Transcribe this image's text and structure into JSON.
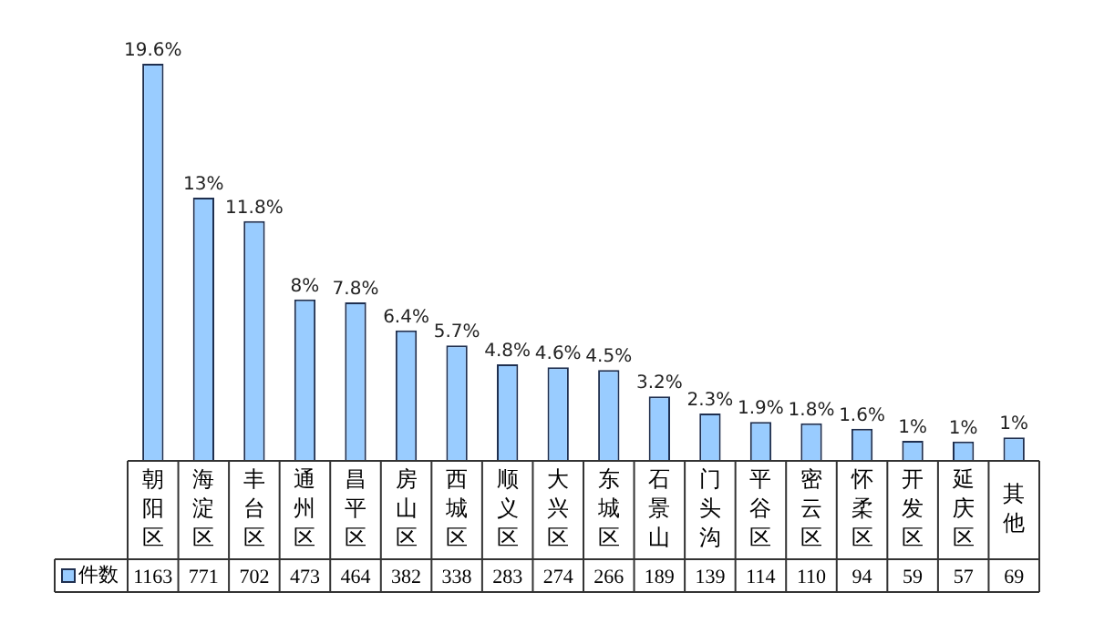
{
  "chart_data": {
    "type": "bar",
    "categories": [
      "朝阳区",
      "海淀区",
      "丰台区",
      "通州区",
      "昌平区",
      "房山区",
      "西城区",
      "顺义区",
      "大兴区",
      "东城区",
      "石景山",
      "门头沟",
      "平谷区",
      "密云区",
      "怀柔区",
      "开发区",
      "延庆区",
      "其他"
    ],
    "series": [
      {
        "name": "件数",
        "color": "#99ccff",
        "values": [
          1163,
          771,
          702,
          473,
          464,
          382,
          338,
          283,
          274,
          266,
          189,
          139,
          114,
          110,
          94,
          59,
          57,
          69
        ]
      }
    ],
    "annotations": [
      {
        "text": "19.6%",
        "x": "朝阳区",
        "y": 1163
      },
      {
        "text": "13%",
        "x": "海淀区",
        "y": 771
      },
      {
        "text": "11.8%",
        "x": "丰台区",
        "y": 702
      },
      {
        "text": "8%",
        "x": "通州区",
        "y": 473
      },
      {
        "text": "7.8%",
        "x": "昌平区",
        "y": 464
      },
      {
        "text": "6.4%",
        "x": "房山区",
        "y": 382
      },
      {
        "text": "5.7%",
        "x": "西城区",
        "y": 338
      },
      {
        "text": "4.8%",
        "x": "顺义区",
        "y": 283
      },
      {
        "text": "4.6%",
        "x": "大兴区",
        "y": 274
      },
      {
        "text": "4.5%",
        "x": "东城区",
        "y": 266
      },
      {
        "text": "3.2%",
        "x": "石景山",
        "y": 189
      },
      {
        "text": "2.3%",
        "x": "门头沟",
        "y": 139
      },
      {
        "text": "1.9%",
        "x": "平谷区",
        "y": 114
      },
      {
        "text": "1.8%",
        "x": "密云区",
        "y": 110
      },
      {
        "text": "1.6%",
        "x": "怀柔区",
        "y": 94
      },
      {
        "text": "1%",
        "x": "开发区",
        "y": 59
      },
      {
        "text": "1%",
        "x": "延庆区",
        "y": 57
      },
      {
        "text": "1%",
        "x": "其他",
        "y": 69
      }
    ],
    "data_labels": true,
    "legend": "bottom"
  }
}
